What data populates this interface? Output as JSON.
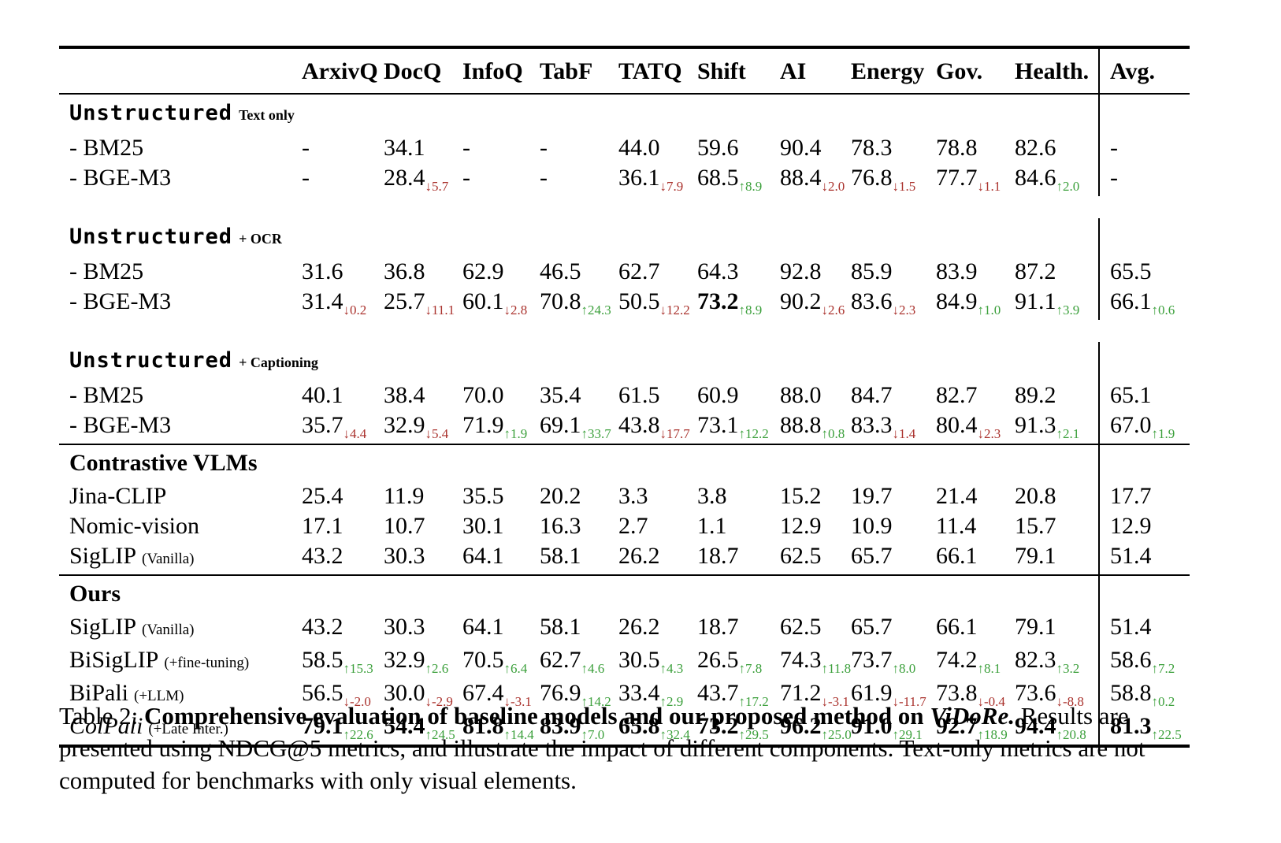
{
  "colors": {
    "up_green": "#3ca03c",
    "down_red": "#aa322d",
    "rule": "#000000",
    "background": "#ffffff"
  },
  "table": {
    "columns": [
      "ArxivQ",
      "DocQ",
      "InfoQ",
      "TabF",
      "TATQ",
      "Shift",
      "AI",
      "Energy",
      "Gov.",
      "Health.",
      "Avg."
    ],
    "sections": [
      {
        "title_main": "Unstructured",
        "mono": true,
        "title_suffix": "Text only",
        "rule_above": false,
        "gap_after": true,
        "rows": [
          {
            "label": "- BM25",
            "cells": [
              {
                "v": "-"
              },
              {
                "v": "34.1"
              },
              {
                "v": "-"
              },
              {
                "v": "-"
              },
              {
                "v": "44.0"
              },
              {
                "v": "59.6"
              },
              {
                "v": "90.4"
              },
              {
                "v": "78.3"
              },
              {
                "v": "78.8"
              },
              {
                "v": "82.6"
              },
              {
                "v": "-"
              }
            ]
          },
          {
            "label": "- BGE-M3",
            "cells": [
              {
                "v": "-"
              },
              {
                "v": "28.4",
                "d": "5.7",
                "dir": "down"
              },
              {
                "v": "-"
              },
              {
                "v": "-"
              },
              {
                "v": "36.1",
                "d": "7.9",
                "dir": "down"
              },
              {
                "v": "68.5",
                "d": "8.9",
                "dir": "up"
              },
              {
                "v": "88.4",
                "d": "2.0",
                "dir": "down"
              },
              {
                "v": "76.8",
                "d": "1.5",
                "dir": "down"
              },
              {
                "v": "77.7",
                "d": "1.1",
                "dir": "down"
              },
              {
                "v": "84.6",
                "d": "2.0",
                "dir": "up"
              },
              {
                "v": "-"
              }
            ]
          }
        ]
      },
      {
        "title_main": "Unstructured",
        "mono": true,
        "title_suffix": "+ OCR",
        "rule_above": false,
        "gap_after": true,
        "rows": [
          {
            "label": "- BM25",
            "cells": [
              {
                "v": "31.6"
              },
              {
                "v": "36.8"
              },
              {
                "v": "62.9"
              },
              {
                "v": "46.5"
              },
              {
                "v": "62.7"
              },
              {
                "v": "64.3"
              },
              {
                "v": "92.8"
              },
              {
                "v": "85.9"
              },
              {
                "v": "83.9"
              },
              {
                "v": "87.2"
              },
              {
                "v": "65.5"
              }
            ]
          },
          {
            "label": "- BGE-M3",
            "cells": [
              {
                "v": "31.4",
                "d": "0.2",
                "dir": "down"
              },
              {
                "v": "25.7",
                "d": "11.1",
                "dir": "down"
              },
              {
                "v": "60.1",
                "d": "2.8",
                "dir": "down"
              },
              {
                "v": "70.8",
                "d": "24.3",
                "dir": "up"
              },
              {
                "v": "50.5",
                "d": "12.2",
                "dir": "down"
              },
              {
                "v": "73.2",
                "d": "8.9",
                "dir": "up",
                "b": true
              },
              {
                "v": "90.2",
                "d": "2.6",
                "dir": "down"
              },
              {
                "v": "83.6",
                "d": "2.3",
                "dir": "down"
              },
              {
                "v": "84.9",
                "d": "1.0",
                "dir": "up"
              },
              {
                "v": "91.1",
                "d": "3.9",
                "dir": "up"
              },
              {
                "v": "66.1",
                "d": "0.6",
                "dir": "up"
              }
            ]
          }
        ]
      },
      {
        "title_main": "Unstructured",
        "mono": true,
        "title_suffix": "+ Captioning",
        "rule_above": false,
        "gap_after": false,
        "rows": [
          {
            "label": "- BM25",
            "cells": [
              {
                "v": "40.1"
              },
              {
                "v": "38.4"
              },
              {
                "v": "70.0"
              },
              {
                "v": "35.4"
              },
              {
                "v": "61.5"
              },
              {
                "v": "60.9"
              },
              {
                "v": "88.0"
              },
              {
                "v": "84.7"
              },
              {
                "v": "82.7"
              },
              {
                "v": "89.2"
              },
              {
                "v": "65.1"
              }
            ]
          },
          {
            "label": "- BGE-M3",
            "cells": [
              {
                "v": "35.7",
                "d": "4.4",
                "dir": "down"
              },
              {
                "v": "32.9",
                "d": "5.4",
                "dir": "down"
              },
              {
                "v": "71.9",
                "d": "1.9",
                "dir": "up"
              },
              {
                "v": "69.1",
                "d": "33.7",
                "dir": "up"
              },
              {
                "v": "43.8",
                "d": "17.7",
                "dir": "down"
              },
              {
                "v": "73.1",
                "d": "12.2",
                "dir": "up"
              },
              {
                "v": "88.8",
                "d": "0.8",
                "dir": "up"
              },
              {
                "v": "83.3",
                "d": "1.4",
                "dir": "down"
              },
              {
                "v": "80.4",
                "d": "2.3",
                "dir": "down"
              },
              {
                "v": "91.3",
                "d": "2.1",
                "dir": "up"
              },
              {
                "v": "67.0",
                "d": "1.9",
                "dir": "up"
              }
            ]
          }
        ]
      },
      {
        "title_main": "Contrastive VLMs",
        "mono": false,
        "title_suffix": "",
        "rule_above": true,
        "gap_after": false,
        "rows": [
          {
            "label": "Jina-CLIP",
            "cells": [
              {
                "v": "25.4"
              },
              {
                "v": "11.9"
              },
              {
                "v": "35.5"
              },
              {
                "v": "20.2"
              },
              {
                "v": "3.3"
              },
              {
                "v": "3.8"
              },
              {
                "v": "15.2"
              },
              {
                "v": "19.7"
              },
              {
                "v": "21.4"
              },
              {
                "v": "20.8"
              },
              {
                "v": "17.7"
              }
            ]
          },
          {
            "label": "Nomic-vision",
            "cells": [
              {
                "v": "17.1"
              },
              {
                "v": "10.7"
              },
              {
                "v": "30.1"
              },
              {
                "v": "16.3"
              },
              {
                "v": "2.7"
              },
              {
                "v": "1.1"
              },
              {
                "v": "12.9"
              },
              {
                "v": "10.9"
              },
              {
                "v": "11.4"
              },
              {
                "v": "15.7"
              },
              {
                "v": "12.9"
              }
            ]
          },
          {
            "label": "SigLIP",
            "label_suffix": "(Vanilla)",
            "cells": [
              {
                "v": "43.2"
              },
              {
                "v": "30.3"
              },
              {
                "v": "64.1"
              },
              {
                "v": "58.1"
              },
              {
                "v": "26.2"
              },
              {
                "v": "18.7"
              },
              {
                "v": "62.5"
              },
              {
                "v": "65.7"
              },
              {
                "v": "66.1"
              },
              {
                "v": "79.1"
              },
              {
                "v": "51.4"
              }
            ]
          }
        ]
      },
      {
        "title_main": "Ours",
        "mono": false,
        "title_suffix": "",
        "rule_above": true,
        "gap_after": false,
        "rows": [
          {
            "label": "SigLIP",
            "label_suffix": "(Vanilla)",
            "cells": [
              {
                "v": "43.2"
              },
              {
                "v": "30.3"
              },
              {
                "v": "64.1"
              },
              {
                "v": "58.1"
              },
              {
                "v": "26.2"
              },
              {
                "v": "18.7"
              },
              {
                "v": "62.5"
              },
              {
                "v": "65.7"
              },
              {
                "v": "66.1"
              },
              {
                "v": "79.1"
              },
              {
                "v": "51.4"
              }
            ]
          },
          {
            "label": "BiSigLIP",
            "label_suffix": "(+fine-tuning)",
            "cells": [
              {
                "v": "58.5",
                "d": "15.3",
                "dir": "up"
              },
              {
                "v": "32.9",
                "d": "2.6",
                "dir": "up"
              },
              {
                "v": "70.5",
                "d": "6.4",
                "dir": "up"
              },
              {
                "v": "62.7",
                "d": "4.6",
                "dir": "up"
              },
              {
                "v": "30.5",
                "d": "4.3",
                "dir": "up"
              },
              {
                "v": "26.5",
                "d": "7.8",
                "dir": "up"
              },
              {
                "v": "74.3",
                "d": "11.8",
                "dir": "up"
              },
              {
                "v": "73.7",
                "d": "8.0",
                "dir": "up"
              },
              {
                "v": "74.2",
                "d": "8.1",
                "dir": "up"
              },
              {
                "v": "82.3",
                "d": "3.2",
                "dir": "up"
              },
              {
                "v": "58.6",
                "d": "7.2",
                "dir": "up"
              }
            ]
          },
          {
            "label": "BiPali",
            "label_suffix": "(+LLM)",
            "cells": [
              {
                "v": "56.5",
                "d": "-2.0",
                "dir": "down"
              },
              {
                "v": "30.0",
                "d": "-2.9",
                "dir": "down"
              },
              {
                "v": "67.4",
                "d": "-3.1",
                "dir": "down"
              },
              {
                "v": "76.9",
                "d": "14.2",
                "dir": "up"
              },
              {
                "v": "33.4",
                "d": "2.9",
                "dir": "up"
              },
              {
                "v": "43.7",
                "d": "17.2",
                "dir": "up"
              },
              {
                "v": "71.2",
                "d": "-3.1",
                "dir": "down"
              },
              {
                "v": "61.9",
                "d": "-11.7",
                "dir": "down"
              },
              {
                "v": "73.8",
                "d": "-0.4",
                "dir": "down"
              },
              {
                "v": "73.6",
                "d": "-8.8",
                "dir": "down"
              },
              {
                "v": "58.8",
                "d": "0.2",
                "dir": "up"
              }
            ]
          },
          {
            "label": "ColPali",
            "label_italic": true,
            "label_suffix": "(+Late Inter.)",
            "cells": [
              {
                "v": "79.1",
                "d": "22.6",
                "dir": "up",
                "b": true
              },
              {
                "v": "54.4",
                "d": "24.5",
                "dir": "up",
                "b": true
              },
              {
                "v": "81.8",
                "d": "14.4",
                "dir": "up",
                "b": true
              },
              {
                "v": "83.9",
                "d": "7.0",
                "dir": "up",
                "b": true
              },
              {
                "v": "65.8",
                "d": "32.4",
                "dir": "up",
                "b": true
              },
              {
                "v": "73.2",
                "d": "29.5",
                "dir": "up",
                "b": true
              },
              {
                "v": "96.2",
                "d": "25.0",
                "dir": "up",
                "b": true
              },
              {
                "v": "91.0",
                "d": "29.1",
                "dir": "up",
                "b": true
              },
              {
                "v": "92.7",
                "d": "18.9",
                "dir": "up",
                "b": true
              },
              {
                "v": "94.4",
                "d": "20.8",
                "dir": "up",
                "b": true
              },
              {
                "v": "81.3",
                "d": "22.5",
                "dir": "up",
                "b": true
              }
            ]
          }
        ]
      }
    ]
  },
  "caption": {
    "prefix": "Table 2: ",
    "bold": "Comprehensive evaluation of baseline models and our proposed method on ",
    "bold_italic": "ViDoRe.",
    "rest": " Results are presented using NDCG@5 metrics, and illustrate the impact of different components. Text-only metrics are not computed for benchmarks with only visual elements."
  }
}
